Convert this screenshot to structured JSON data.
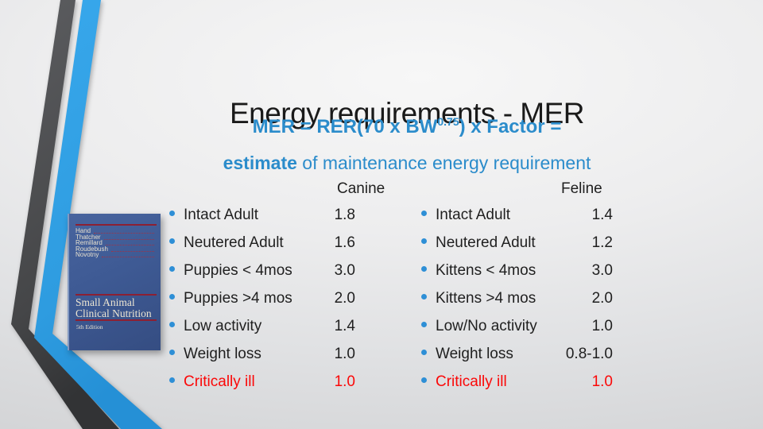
{
  "slide": {
    "title": "Energy requirements - MER",
    "formula_prefix": "MER = RER(70 x BW",
    "formula_sup": "0.75",
    "formula_suffix": ") x Factor =",
    "subtitle_bold": "estimate",
    "subtitle_rest": " of maintenance energy requirement"
  },
  "book": {
    "authors": [
      "Hand",
      "Thatcher",
      "Remillard",
      "Roudebush",
      "Novotny"
    ],
    "title_line1": "Small Animal",
    "title_line2": "Clinical Nutrition",
    "edition": "5th Edition"
  },
  "table": {
    "columns": [
      {
        "header": "Canine",
        "rows": [
          {
            "label": "Intact Adult",
            "value": "1.8",
            "critical": false
          },
          {
            "label": "Neutered Adult",
            "value": "1.6",
            "critical": false
          },
          {
            "label": "Puppies < 4mos",
            "value": "3.0",
            "critical": false
          },
          {
            "label": "Puppies >4 mos",
            "value": "2.0",
            "critical": false
          },
          {
            "label": "Low activity",
            "value": "1.4",
            "critical": false
          },
          {
            "label": "Weight loss",
            "value": "1.0",
            "critical": false
          },
          {
            "label": "Critically ill",
            "value": "1.0",
            "critical": true
          }
        ]
      },
      {
        "header": "Feline",
        "rows": [
          {
            "label": "Intact Adult",
            "value": "1.4",
            "critical": false
          },
          {
            "label": "Neutered Adult",
            "value": "1.2",
            "critical": false
          },
          {
            "label": "Kittens < 4mos",
            "value": "3.0",
            "critical": false
          },
          {
            "label": "Kittens >4 mos",
            "value": "2.0",
            "critical": false
          },
          {
            "label": "Low/No activity",
            "value": "1.0",
            "critical": false
          },
          {
            "label": "Weight loss",
            "value": "0.8-1.0",
            "critical": false
          },
          {
            "label": "Critically ill",
            "value": "1.0",
            "critical": true
          }
        ]
      }
    ]
  },
  "colors": {
    "accent_blue_text": "#2b8ccb",
    "bullet_blue": "#2e8fd6",
    "ribbon_blue": "#35a3e8",
    "ribbon_gray": "#4a4b4d",
    "critical_red": "#fb0808",
    "book_cover_blue": "#3e5a94",
    "book_rule_red": "#8c2033",
    "background_gray": "#e9eaec"
  }
}
